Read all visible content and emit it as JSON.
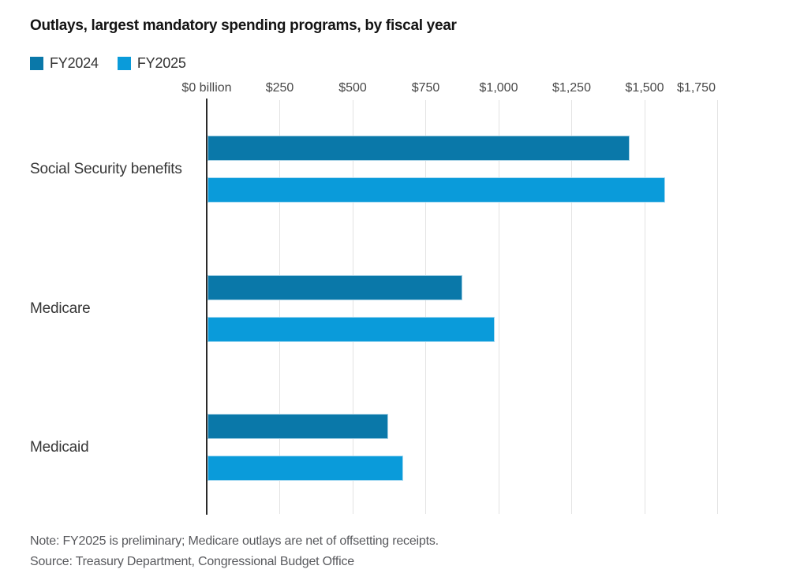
{
  "title": "Outlays, largest mandatory spending programs, by fiscal year",
  "legend": [
    {
      "label": "FY2024",
      "color": "#0a78a9"
    },
    {
      "label": "FY2025",
      "color": "#0a9bda"
    }
  ],
  "chart_data": {
    "type": "bar",
    "orientation": "horizontal",
    "title": "Outlays, largest mandatory spending programs, by fiscal year",
    "unit": "billions of dollars",
    "categories": [
      "Social Security benefits",
      "Medicare",
      "Medicaid"
    ],
    "series": [
      {
        "name": "FY2024",
        "color": "#0a78a9",
        "values": [
          1447,
          872,
          619
        ]
      },
      {
        "name": "FY2025",
        "color": "#0a9bda",
        "values": [
          1567,
          985,
          669
        ]
      }
    ],
    "xlim": [
      0,
      1750
    ],
    "ticks": [
      {
        "label": "$0 billion",
        "value": 0
      },
      {
        "label": "$250",
        "value": 250
      },
      {
        "label": "$500",
        "value": 500
      },
      {
        "label": "$750",
        "value": 750
      },
      {
        "label": "$1,000",
        "value": 1000
      },
      {
        "label": "$1,250",
        "value": 1250
      },
      {
        "label": "$1,500",
        "value": 1500
      },
      {
        "label": "$1,750",
        "value": 1750
      }
    ],
    "grid": "vertical",
    "legend_position": "top-left"
  },
  "note": "Note: FY2025 is preliminary; Medicare outlays are net of offsetting receipts.",
  "source": "Source: Treasury Department, Congressional Budget Office"
}
